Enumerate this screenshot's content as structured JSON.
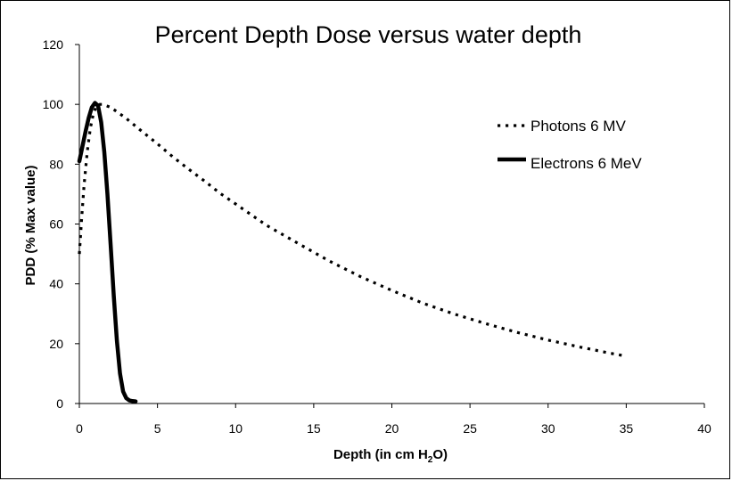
{
  "chart_data": {
    "type": "line",
    "title": "Percent Depth Dose versus water depth",
    "xlabel_parts": {
      "main": "Depth (in cm H",
      "sub": "2",
      "tail": "O)"
    },
    "ylabel": "PDD (% Max value)",
    "xlim": [
      0,
      40
    ],
    "ylim": [
      0,
      120
    ],
    "xticks": [
      0,
      5,
      10,
      15,
      20,
      25,
      30,
      35,
      40
    ],
    "yticks": [
      0,
      20,
      40,
      60,
      80,
      100,
      120
    ],
    "grid": false,
    "legend_position": "top-right",
    "series": [
      {
        "name": "Photons 6 MV",
        "style": "dotted",
        "color": "#000000",
        "x": [
          0,
          0.15,
          0.3,
          0.5,
          0.7,
          0.9,
          1.1,
          1.3,
          1.5,
          2,
          2.5,
          3,
          4,
          5,
          6,
          7,
          8,
          9,
          10,
          12,
          14,
          16,
          18,
          20,
          22,
          24,
          26,
          28,
          30,
          32,
          34,
          35
        ],
        "y": [
          50,
          62,
          73,
          84,
          92,
          97,
          99.5,
          100,
          100,
          99,
          97.2,
          95.3,
          91,
          86.8,
          82.4,
          78.3,
          74.4,
          70.3,
          66.7,
          59.5,
          53.5,
          47.6,
          42.4,
          37.8,
          33.5,
          29.9,
          26.7,
          23.8,
          21.2,
          18.9,
          16.8,
          15.8
        ]
      },
      {
        "name": "Electrons 6 MeV",
        "style": "solid",
        "color": "#000000",
        "x": [
          0,
          0.2,
          0.4,
          0.6,
          0.8,
          1.0,
          1.2,
          1.4,
          1.6,
          1.8,
          2.0,
          2.2,
          2.4,
          2.6,
          2.8,
          3.0,
          3.2,
          3.4,
          3.6
        ],
        "y": [
          81,
          86,
          91,
          95.5,
          99,
          100.5,
          99.5,
          94,
          84,
          70,
          53,
          36,
          21,
          10,
          4,
          1.8,
          1,
          0.8,
          0.7
        ]
      }
    ]
  }
}
